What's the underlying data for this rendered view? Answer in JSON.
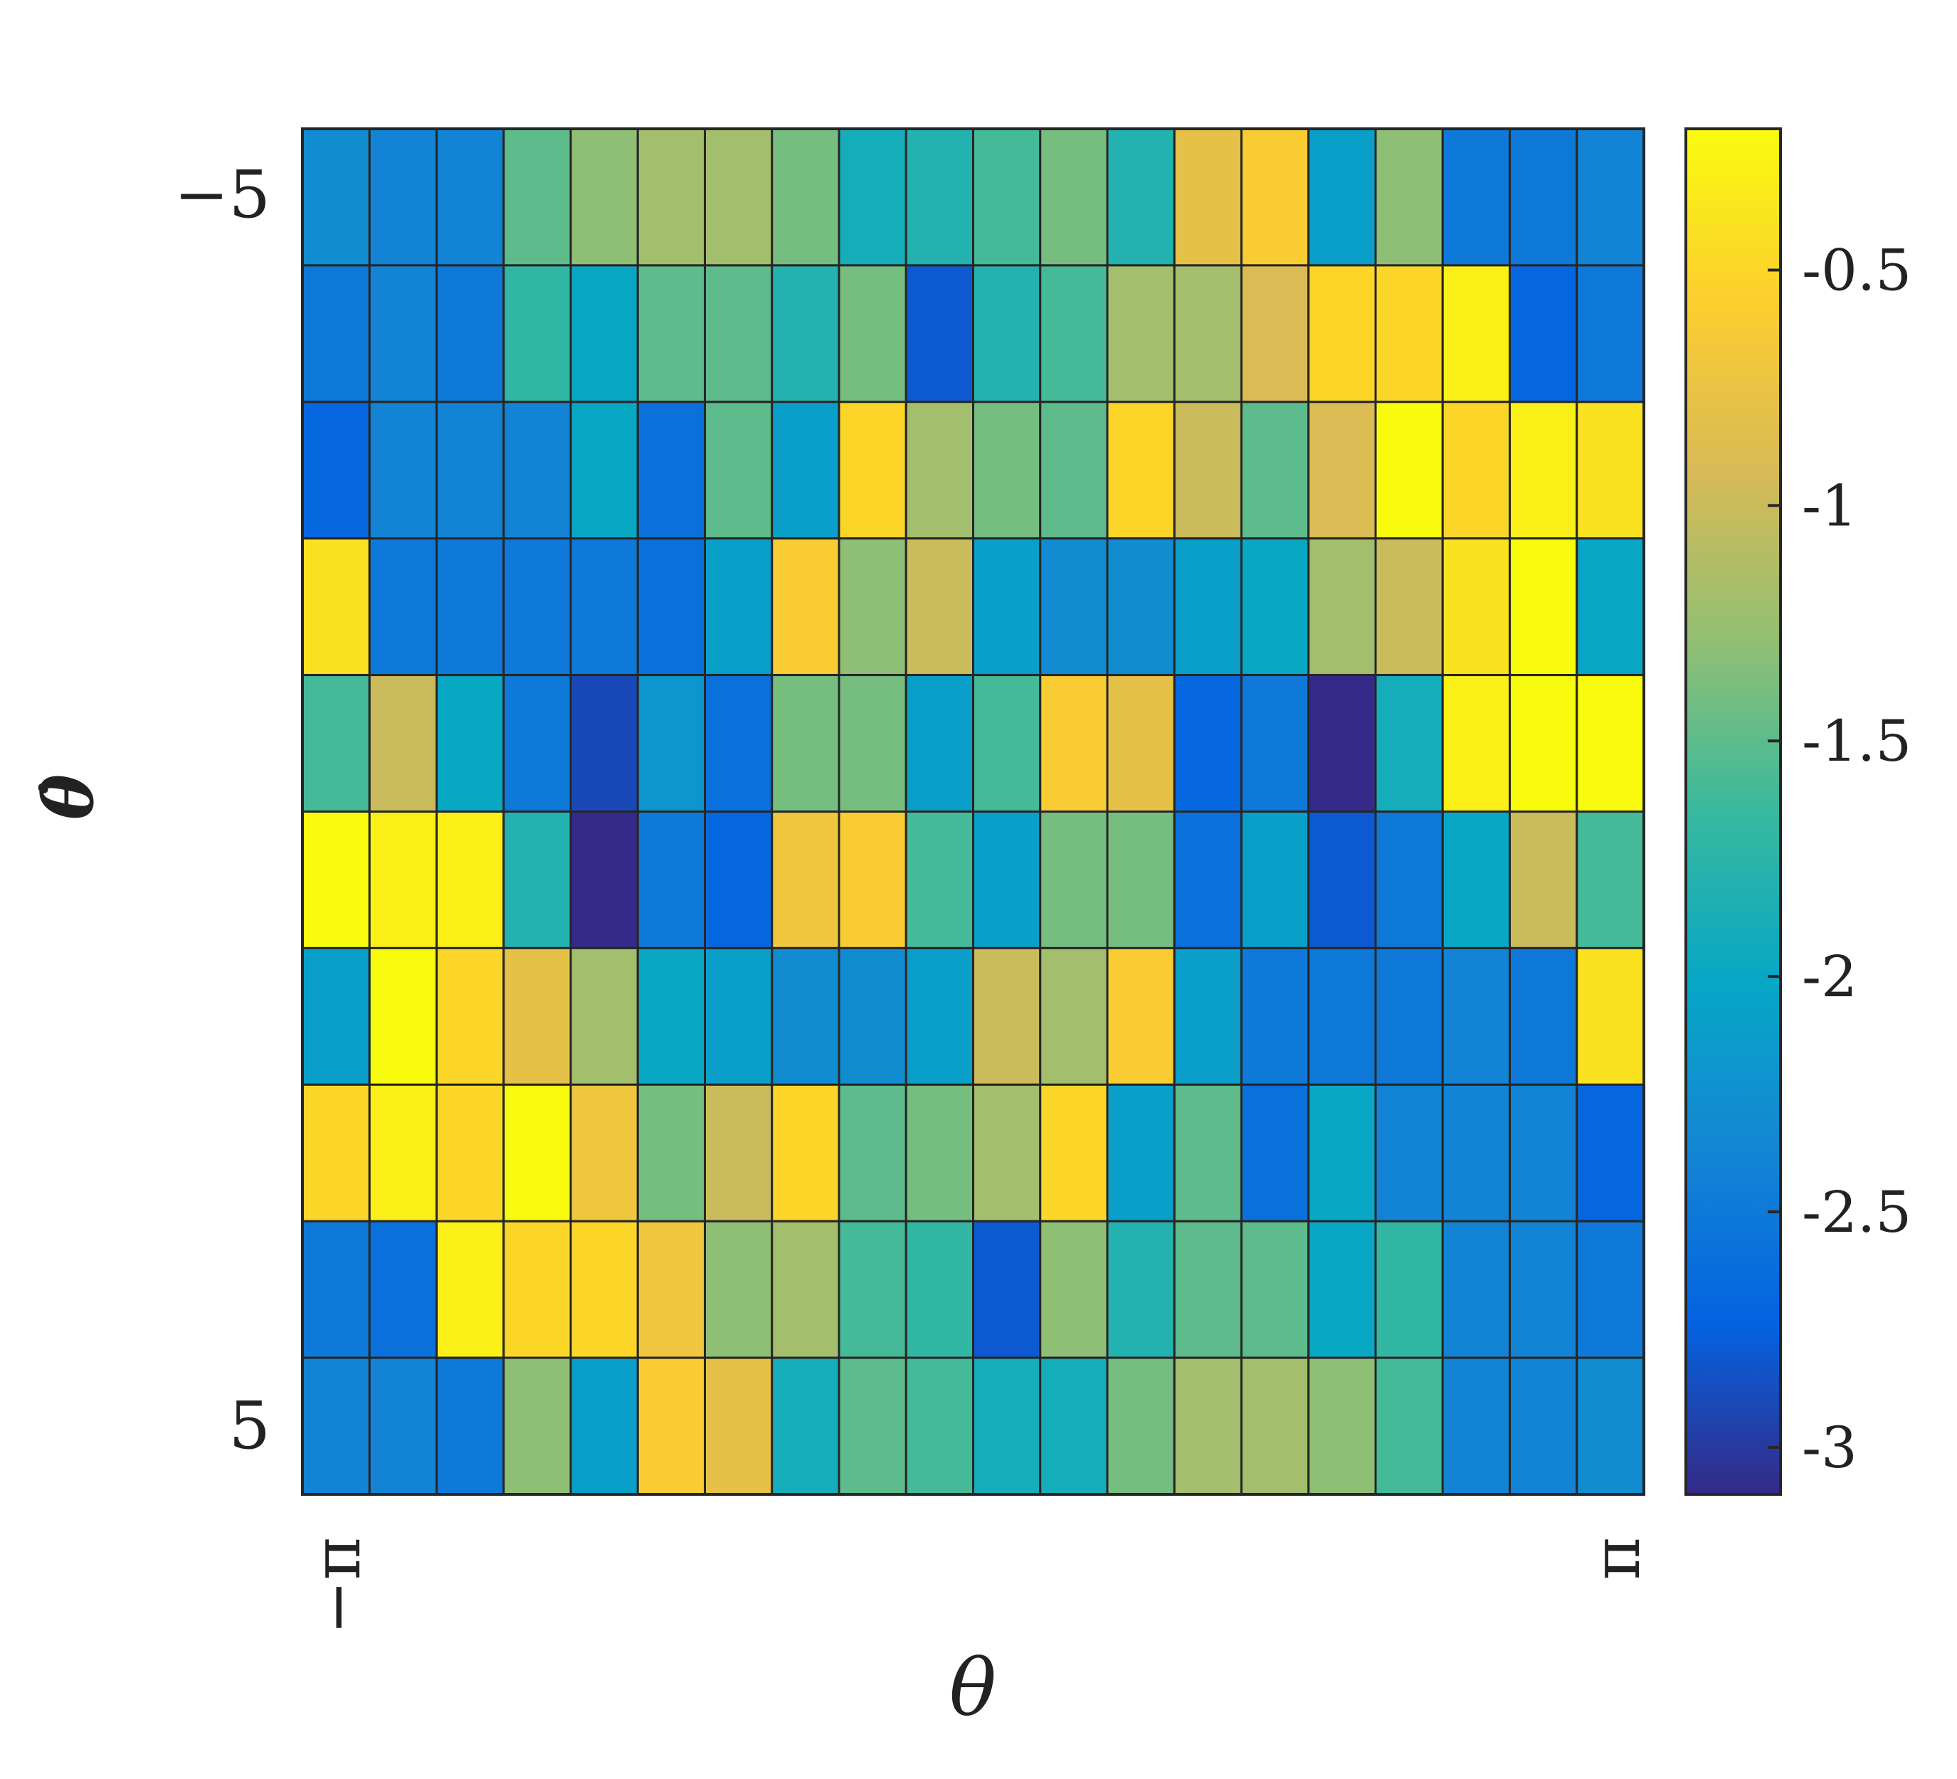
{
  "chart_data": {
    "type": "heatmap",
    "xlabel": "θ",
    "ylabel": "θ̇",
    "x_tick_labels": [
      "−π",
      "π"
    ],
    "y_tick_labels": [
      "−5",
      "5"
    ],
    "xlim": [
      -3.14159,
      3.14159
    ],
    "ylim": [
      -5,
      5
    ],
    "n_cols": 20,
    "n_rows": 10,
    "colormap": "parula",
    "color_range": [
      -3.1,
      -0.2
    ],
    "colorbar_ticks": [
      "-3",
      "-2.5",
      "-2",
      "-1.5",
      "-1",
      "-0.5"
    ],
    "colorbar_tick_values": [
      -3,
      -2.5,
      -2,
      -1.5,
      -1,
      -0.5
    ],
    "grid_lines": true,
    "values": [
      [
        -2.3,
        -2.4,
        -2.4,
        -1.5,
        -1.3,
        -1.2,
        -1.2,
        -1.4,
        -1.9,
        -1.8,
        -1.6,
        -1.4,
        -1.8,
        -0.8,
        -0.6,
        -2.1,
        -1.3,
        -2.5,
        -2.5,
        -2.4
      ],
      [
        -2.5,
        -2.4,
        -2.5,
        -1.7,
        -2.0,
        -1.5,
        -1.5,
        -1.8,
        -1.4,
        -2.8,
        -1.8,
        -1.6,
        -1.2,
        -1.2,
        -0.9,
        -0.5,
        -0.5,
        -0.3,
        -2.7,
        -2.5
      ],
      [
        -2.7,
        -2.4,
        -2.4,
        -2.4,
        -2.0,
        -2.6,
        -1.5,
        -2.1,
        -0.5,
        -1.2,
        -1.4,
        -1.5,
        -0.5,
        -1.0,
        -1.5,
        -0.9,
        -0.2,
        -0.5,
        -0.3,
        -0.4
      ],
      [
        -0.4,
        -2.5,
        -2.5,
        -2.5,
        -2.5,
        -2.6,
        -2.1,
        -0.6,
        -1.3,
        -1.0,
        -2.1,
        -2.3,
        -2.3,
        -2.1,
        -2.0,
        -1.2,
        -1.0,
        -0.4,
        -0.2,
        -2.0
      ],
      [
        -1.6,
        -1.0,
        -2.0,
        -2.5,
        -2.9,
        -2.2,
        -2.6,
        -1.4,
        -1.4,
        -2.1,
        -1.6,
        -0.6,
        -0.8,
        -2.7,
        -2.5,
        -3.1,
        -1.9,
        -0.3,
        -0.2,
        -0.2
      ],
      [
        -0.2,
        -0.3,
        -0.3,
        -1.8,
        -3.1,
        -2.5,
        -2.7,
        -0.7,
        -0.6,
        -1.6,
        -2.1,
        -1.4,
        -1.4,
        -2.6,
        -2.1,
        -2.8,
        -2.5,
        -2.0,
        -1.0,
        -1.6
      ],
      [
        -2.1,
        -0.2,
        -0.5,
        -0.8,
        -1.2,
        -2.0,
        -2.1,
        -2.3,
        -2.3,
        -2.1,
        -1.0,
        -1.2,
        -0.6,
        -2.1,
        -2.5,
        -2.5,
        -2.5,
        -2.4,
        -2.5,
        -0.4
      ],
      [
        -0.5,
        -0.3,
        -0.5,
        -0.2,
        -0.7,
        -1.4,
        -1.0,
        -0.5,
        -1.5,
        -1.4,
        -1.2,
        -0.5,
        -2.1,
        -1.5,
        -2.6,
        -2.0,
        -2.4,
        -2.4,
        -2.4,
        -2.7
      ],
      [
        -2.5,
        -2.6,
        -0.3,
        -0.5,
        -0.5,
        -0.7,
        -1.3,
        -1.2,
        -1.6,
        -1.7,
        -2.8,
        -1.3,
        -1.8,
        -1.5,
        -1.5,
        -2.0,
        -1.7,
        -2.4,
        -2.4,
        -2.5
      ],
      [
        -2.4,
        -2.4,
        -2.5,
        -1.3,
        -2.1,
        -0.6,
        -0.8,
        -1.9,
        -1.5,
        -1.6,
        -1.9,
        -1.9,
        -1.4,
        -1.2,
        -1.2,
        -1.3,
        -1.6,
        -2.4,
        -2.4,
        -2.3
      ]
    ]
  }
}
